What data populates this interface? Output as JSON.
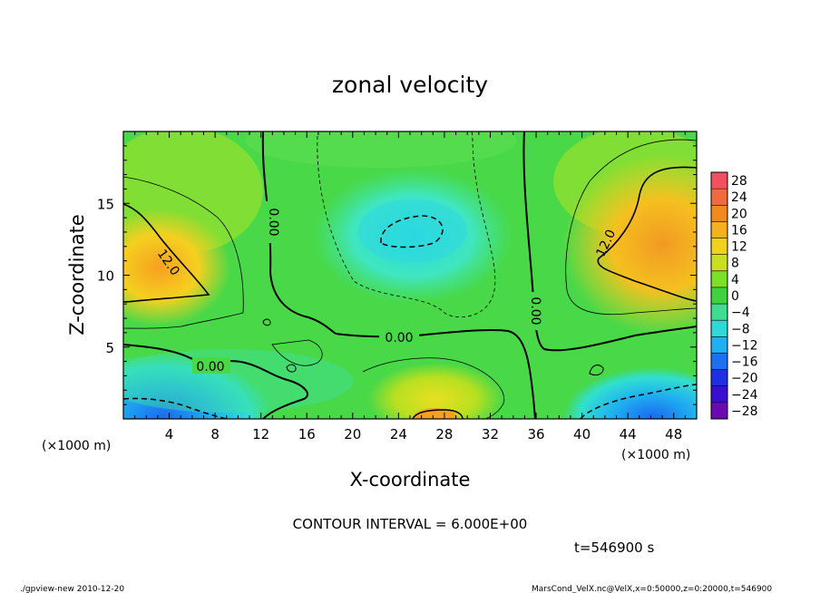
{
  "chart_data": {
    "type": "heatmap",
    "title": "zonal velocity",
    "xlabel": "X-coordinate",
    "ylabel": "Z-coordinate",
    "x_unit": "(×1000 m)",
    "y_unit": "(×1000 m)",
    "xlim": [
      0,
      50
    ],
    "ylim": [
      0,
      20
    ],
    "x_ticks": [
      "4",
      "8",
      "12",
      "16",
      "20",
      "24",
      "28",
      "32",
      "36",
      "40",
      "44",
      "48"
    ],
    "y_ticks": [
      "5",
      "10",
      "15"
    ],
    "colorbar_ticks": [
      "28",
      "24",
      "20",
      "16",
      "12",
      "8",
      "4",
      "0",
      "−4",
      "−8",
      "−12",
      "−16",
      "−20",
      "−24",
      "−28"
    ],
    "contour_labels": [
      "0.00",
      "0.00",
      "0.00",
      "0.00",
      "12.0",
      "12.0"
    ],
    "contour_interval_text": "CONTOUR INTERVAL = 6.000E+00",
    "time_text": "t=546900 s"
  },
  "footer": {
    "left": "./gpview-new  2010-12-20",
    "right": "MarsCond_VelX.nc@VelX,x=0:50000,z=0:20000,t=546900"
  },
  "colors": {
    "positive_max": "#f05050",
    "zero": "#40d040",
    "negative_max": "#6a0ab0"
  }
}
